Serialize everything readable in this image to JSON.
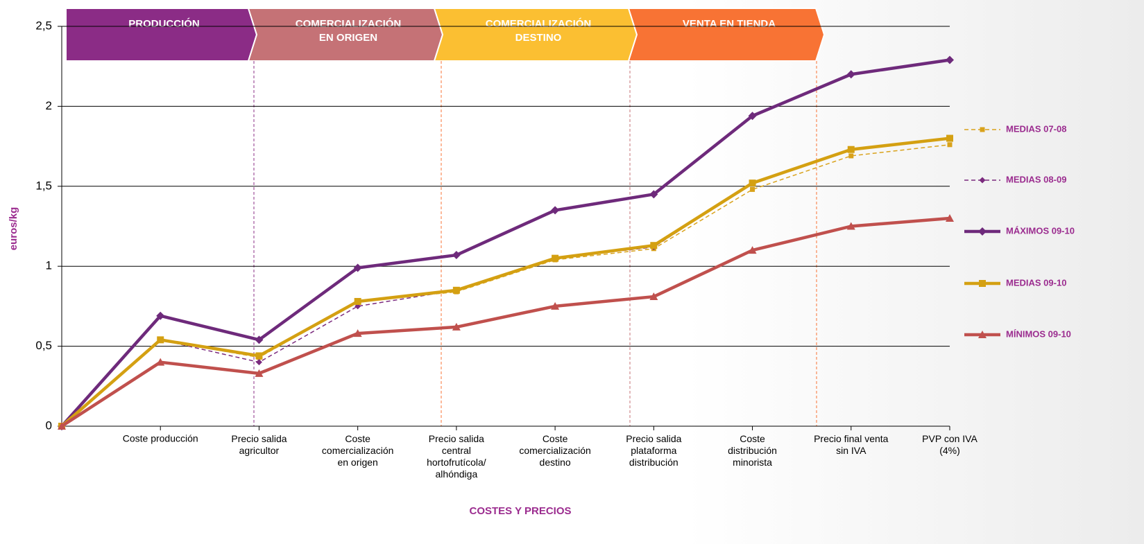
{
  "chart_data": {
    "type": "line",
    "x_label": "COSTES Y PRECIOS",
    "y_label": "euros/kg",
    "stages": [
      {
        "label": "PRODUCCIÓN",
        "color": "#8B2C86"
      },
      {
        "label": "COMERCIALIZACIÓN\nEN ORIGEN",
        "color": "#C57276"
      },
      {
        "label": "COMERCIALIZACIÓN\nDESTINO",
        "color": "#FBBF32"
      },
      {
        "label": "VENTA EN TIENDA",
        "color": "#F87334"
      }
    ],
    "categories": [
      null,
      "Coste producción",
      "Precio salida\nagricultor",
      "Coste\ncomercialización\nen origen",
      "Precio salida\ncentral\nhortofrutícola/\nalhóndiga",
      "Coste\ncomercialización\ndestino",
      "Precio salida\nplataforma\ndistribución",
      "Coste\ndistribución\nminorista",
      "Precio final venta\nsin IVA",
      "PVP con IVA\n(4%)"
    ],
    "series": [
      {
        "name": "MEDIAS 07-08",
        "color": "#D9A21B",
        "dashed": true,
        "marker": "square",
        "values": [
          0,
          0.54,
          0.43,
          0.78,
          0.84,
          1.04,
          1.11,
          1.48,
          1.69,
          1.76
        ]
      },
      {
        "name": "MEDIAS 08-09",
        "color": "#7B2A7E",
        "dashed": true,
        "marker": "diamond",
        "values": [
          0,
          0.54,
          0.4,
          0.75,
          0.85,
          1.05,
          1.12,
          1.52,
          1.73,
          1.8
        ]
      },
      {
        "name": "MÁXIMOS 09-10",
        "color": "#6E2A7B",
        "dashed": false,
        "marker": "diamond",
        "values": [
          0,
          0.69,
          0.54,
          0.99,
          1.07,
          1.35,
          1.45,
          1.94,
          2.2,
          2.29
        ]
      },
      {
        "name": "MEDIAS 09-10",
        "color": "#D4A012",
        "dashed": false,
        "marker": "square",
        "values": [
          0,
          0.54,
          0.44,
          0.78,
          0.85,
          1.05,
          1.13,
          1.52,
          1.73,
          1.8
        ]
      },
      {
        "name": "MÍNIMOS 09-10",
        "color": "#C0504D",
        "dashed": false,
        "marker": "triangle",
        "values": [
          0,
          0.4,
          0.33,
          0.58,
          0.62,
          0.75,
          0.81,
          1.1,
          1.25,
          1.3
        ]
      }
    ],
    "ylim": [
      0,
      2.5
    ],
    "yticks": [
      0,
      {
        "value": 0.5,
        "label": "0,5"
      },
      1,
      {
        "value": 1.5,
        "label": "1,5"
      },
      2,
      {
        "value": 2.5,
        "label": "2,5"
      }
    ],
    "grid": true
  }
}
